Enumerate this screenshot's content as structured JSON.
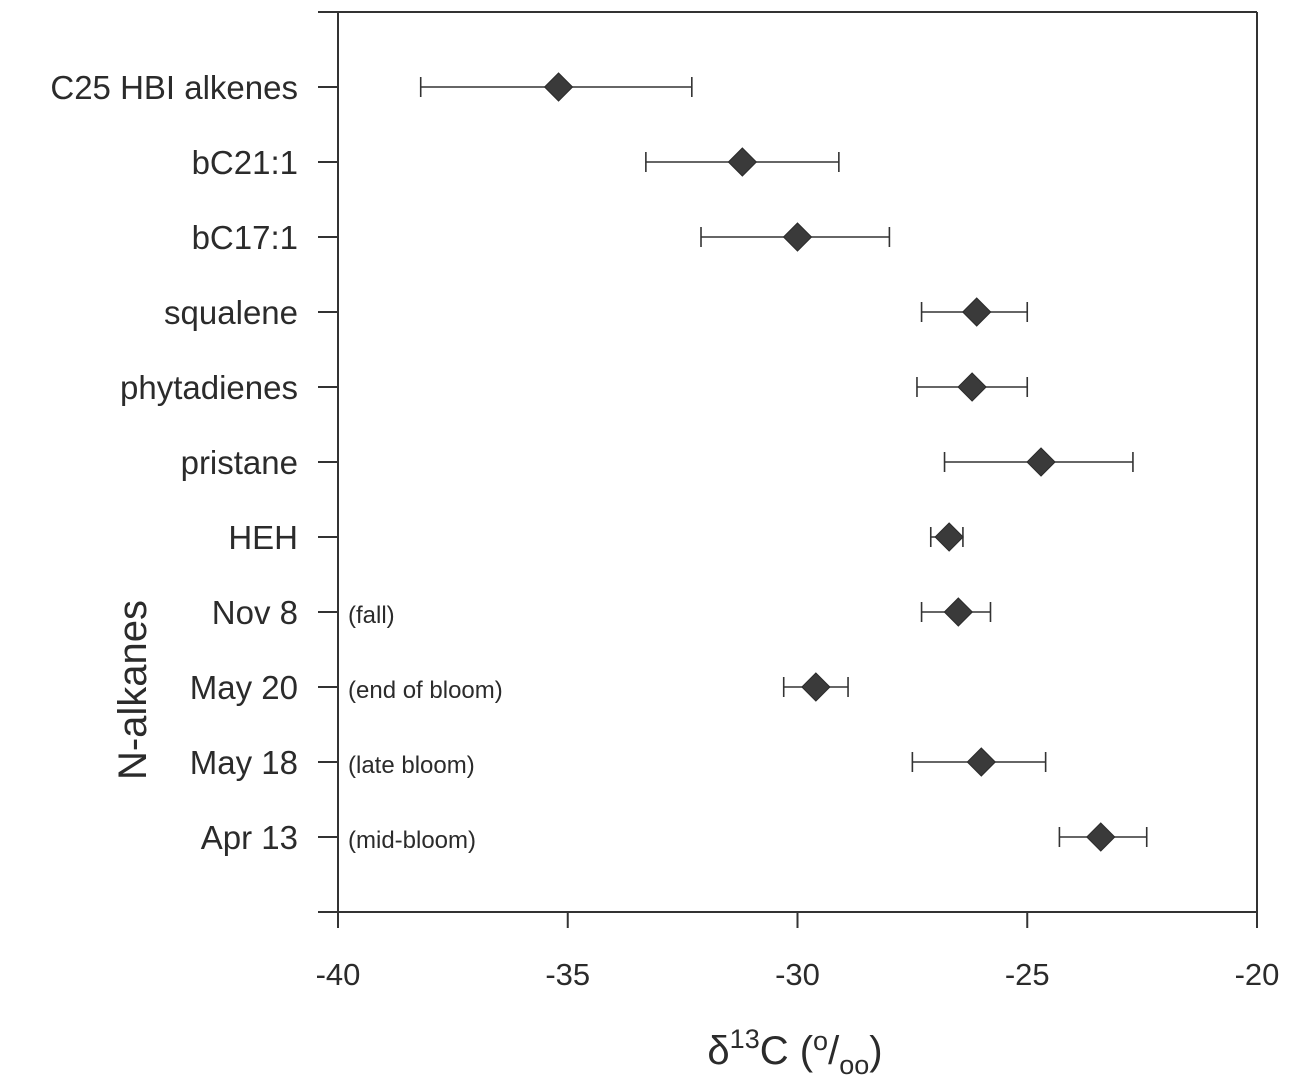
{
  "chart_data": {
    "type": "scatter",
    "orientation": "horizontal",
    "title": "",
    "xlabel": "δ13C (o/oo)",
    "xlabel_parts": {
      "delta": "δ",
      "sup": "13",
      "C": "C (",
      "o": "o",
      "slash": "/",
      "oo": "oo",
      "close": ")"
    },
    "ylabel": "N-alkanes",
    "xlim": [
      -40,
      -20
    ],
    "xticks": [
      -40,
      -35,
      -30,
      -25,
      -20
    ],
    "xtick_labels": [
      "-40",
      "-35",
      "-30",
      "-25",
      "-20"
    ],
    "grid": false,
    "legend": "none",
    "marker": "diamond",
    "marker_color": "#3a3a3a",
    "points": [
      {
        "label": "C25 HBI alkenes",
        "note": "",
        "value": -35.2,
        "err_low": -38.2,
        "err_high": -32.3
      },
      {
        "label": "bC21:1",
        "note": "",
        "value": -31.2,
        "err_low": -33.3,
        "err_high": -29.1
      },
      {
        "label": "bC17:1",
        "note": "",
        "value": -30.0,
        "err_low": -32.1,
        "err_high": -28.0
      },
      {
        "label": "squalene",
        "note": "",
        "value": -26.1,
        "err_low": -27.3,
        "err_high": -25.0
      },
      {
        "label": "phytadienes",
        "note": "",
        "value": -26.2,
        "err_low": -27.4,
        "err_high": -25.0
      },
      {
        "label": "pristane",
        "note": "",
        "value": -24.7,
        "err_low": -26.8,
        "err_high": -22.7
      },
      {
        "label": "HEH",
        "note": "",
        "value": -26.7,
        "err_low": -27.1,
        "err_high": -26.4
      },
      {
        "label": "Nov 8",
        "note": "(fall)",
        "value": -26.5,
        "err_low": -27.3,
        "err_high": -25.8
      },
      {
        "label": "May 20",
        "note": "(end of bloom)",
        "value": -29.6,
        "err_low": -30.3,
        "err_high": -28.9
      },
      {
        "label": "May 18",
        "note": "(late bloom)",
        "value": -26.0,
        "err_low": -27.5,
        "err_high": -24.6
      },
      {
        "label": "Apr 13",
        "note": "(mid-bloom)",
        "value": -23.4,
        "err_low": -24.3,
        "err_high": -22.4
      }
    ]
  }
}
